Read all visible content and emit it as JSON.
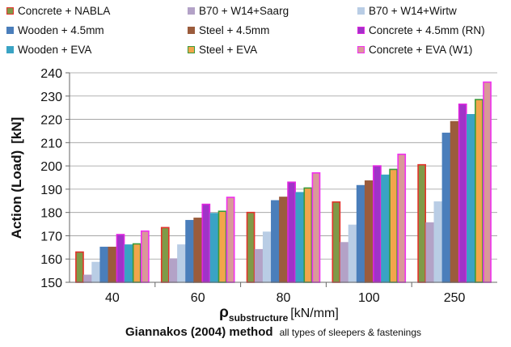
{
  "chart_data": {
    "type": "bar",
    "ylabel": "Action (Load)",
    "ylabel_unit": "[kN]",
    "xlabel_main": "ρ",
    "xlabel_sub": "substructure",
    "xlabel_unit": "[kN/mm]",
    "title_bold": "Giannakos (2004) method",
    "title_note": "all types of sleepers & fastenings",
    "ylim": [
      150,
      240
    ],
    "yticks": [
      150,
      160,
      170,
      180,
      190,
      200,
      210,
      220,
      230,
      240
    ],
    "grid": "horizontal",
    "legend_position": "top",
    "categories": [
      "40",
      "60",
      "80",
      "100",
      "250"
    ],
    "series": [
      {
        "name": "Concrete + NABLA",
        "fill": "#7f9a48",
        "stroke": "#e3322b",
        "values": [
          163,
          173.5,
          180,
          184.5,
          200.5
        ]
      },
      {
        "name": "B70 +  W14+Saarg",
        "fill": "#b3a2c7",
        "stroke": "#b3a2c7",
        "values": [
          153,
          160,
          164,
          167,
          175.5
        ]
      },
      {
        "name": "B70 + W14+Wirtw",
        "fill": "#b9cde5",
        "stroke": "#b9cde5",
        "values": [
          158.5,
          166,
          171.5,
          174.5,
          184.5
        ]
      },
      {
        "name": "Wooden + 4.5mm",
        "fill": "#4a7ebb",
        "stroke": "#4a7ebb",
        "values": [
          165,
          176.5,
          185,
          191.5,
          214
        ]
      },
      {
        "name": "Steel + 4.5mm",
        "fill": "#9b5c3c",
        "stroke": "#9b5c3c",
        "values": [
          165,
          177.5,
          186.5,
          193.5,
          219
        ]
      },
      {
        "name": "Concrete + 4.5mm (RN)",
        "fill": "#a033c8",
        "stroke": "#e026e0",
        "values": [
          170.5,
          183.5,
          193,
          200,
          226.5
        ]
      },
      {
        "name": "Wooden + EVA",
        "fill": "#3aa3c4",
        "stroke": "#3aa3c4",
        "values": [
          166,
          179.5,
          188.5,
          196,
          222
        ]
      },
      {
        "name": "Steel + EVA",
        "fill": "#f2a54b",
        "stroke": "#3a9a3a",
        "values": [
          166.5,
          180.5,
          190.5,
          198.5,
          228.5
        ]
      },
      {
        "name": "Concrete + EVA (W1)",
        "fill": "#d99999",
        "stroke": "#f030f0",
        "values": [
          172,
          186.5,
          197,
          205,
          236
        ]
      }
    ]
  }
}
